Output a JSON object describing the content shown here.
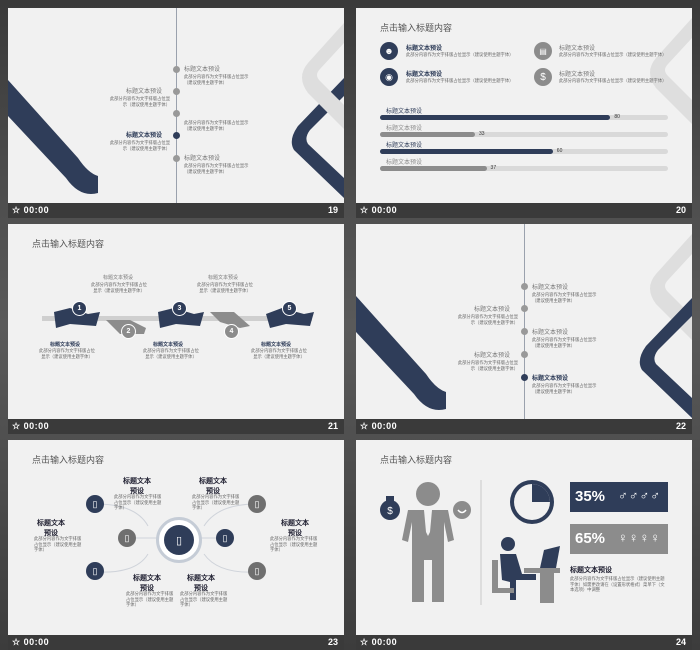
{
  "footer_time": "00:00",
  "slide19": {
    "number": "19",
    "items": [
      {
        "label": "标题文本预设",
        "desc": "此部分内容作为文字排版占位显示（建议使用主题字体）"
      },
      {
        "label": "标题文本预设",
        "desc": "此部分内容作为文字排版占位显示（建议使用主题字体）"
      },
      {
        "label": "标题文本预设",
        "desc": "此部分内容作为文字排版占位显示（建议使用主题字体）"
      },
      {
        "label": "标题文本预设",
        "desc": "此部分内容作为文字排版占位显示（建议使用主题字体）"
      }
    ]
  },
  "slide20": {
    "number": "20",
    "heading": "点击输入标题内容",
    "icon_items": [
      {
        "label": "标题文本预设",
        "desc": "此部分内容作为文字排版占位显示（建议使用主题字体）",
        "icon": "people-icon"
      },
      {
        "label": "标题文本预设",
        "desc": "此部分内容作为文字排版占位显示（建议使用主题字体）",
        "icon": "calendar-icon"
      },
      {
        "label": "标题文本预设",
        "desc": "此部分内容作为文字排版占位显示（建议使用主题字体）",
        "icon": "broadcast-icon"
      },
      {
        "label": "标题文本预设",
        "desc": "此部分内容作为文字排版占位显示（建议使用主题字体）",
        "icon": "dollar-icon"
      }
    ],
    "bars": [
      {
        "label": "标题文本预设",
        "value": 80,
        "color": "#2f3d59"
      },
      {
        "label": "标题文本预设",
        "value": 33,
        "color": "#8c8c8c"
      },
      {
        "label": "标题文本预设",
        "value": 60,
        "color": "#2f3d59"
      },
      {
        "label": "标题文本预设",
        "value": 37,
        "color": "#8c8c8c"
      }
    ]
  },
  "slide21": {
    "number": "21",
    "heading": "点击输入标题内容",
    "top_items": [
      {
        "label": "标题文本预设",
        "desc": "此部分内容作为文字排版占位显示（建议使用主题字体）"
      },
      {
        "label": "标题文本预设",
        "desc": "此部分内容作为文字排版占位显示（建议使用主题字体）"
      }
    ],
    "bottom_items": [
      {
        "label": "标题文本预设",
        "desc": "此部分内容作为文字排版占位显示（建议使用主题字体）"
      },
      {
        "label": "标题文本预设",
        "desc": "此部分内容作为文字排版占位显示（建议使用主题字体）"
      },
      {
        "label": "标题文本预设",
        "desc": "此部分内容作为文字排版占位显示（建议使用主题字体）"
      }
    ],
    "steps": [
      "1",
      "2",
      "3",
      "4",
      "5"
    ]
  },
  "slide22": {
    "number": "22",
    "items": [
      {
        "label": "标题文本预设",
        "desc": "此部分内容作为文字排版占位显示（建议使用主题字体）"
      },
      {
        "label": "标题文本预设",
        "desc": "此部分内容作为文字排版占位显示（建议使用主题字体）"
      },
      {
        "label": "标题文本预设",
        "desc": "此部分内容作为文字排版占位显示（建议使用主题字体）"
      },
      {
        "label": "标题文本预设",
        "desc": "此部分内容作为文字排版占位显示（建议使用主题字体）"
      },
      {
        "label": "标题文本预设",
        "desc": "此部分内容作为文字排版占位显示（建议使用主题字体）"
      }
    ]
  },
  "slide23": {
    "number": "23",
    "heading": "点击输入标题内容",
    "labels": [
      "标题文本预设",
      "标题文本预设",
      "标题文本预设",
      "标题文本预设",
      "标题文本预设",
      "标题文本预设"
    ],
    "desc": "此部分内容作为文字排版占位显示（建议使用主题字体）"
  },
  "slide24": {
    "number": "24",
    "heading": "点击输入标题内容",
    "stat1": "35%",
    "stat2": "65%",
    "title": "标题文本预设",
    "desc": "此部分内容作为文字排版占位显示（建议使用主题字体）如需更改请在（设置形状格式）菜单下（文本选项）中调整"
  }
}
